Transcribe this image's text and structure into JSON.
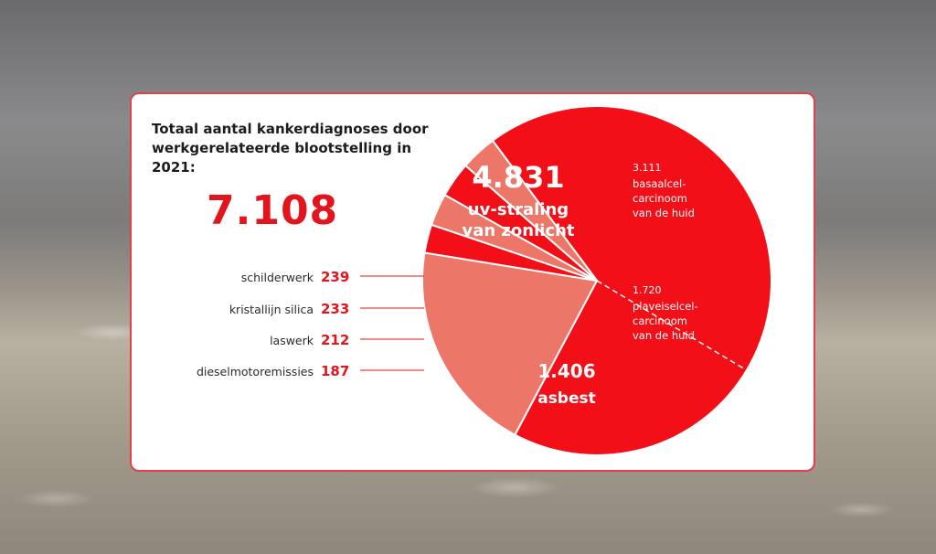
{
  "card": {
    "title": "Totaal aantal kankerdiagnoses door werkgerelateerde blootstelling in 2021:",
    "total": "7.108"
  },
  "colors": {
    "red": "#f20f17",
    "salmon": "#ec7668",
    "accent_text": "#e3141b"
  },
  "chart_data": {
    "type": "pie",
    "title": "Totaal aantal kankerdiagnoses door werkgerelateerde blootstelling in 2021:",
    "total": 7108,
    "slices": [
      {
        "label": "uv-straling van zonlicht",
        "value": 4831,
        "value_label": "4.831",
        "color": "#f20f17",
        "sub": [
          {
            "value": 3111,
            "value_label": "3.111",
            "label": "basaalcel-carcinoom van de huid"
          },
          {
            "value": 1720,
            "value_label": "1.720",
            "label": "plaveiselcel-carcinoom van de huid"
          }
        ]
      },
      {
        "label": "asbest",
        "value": 1406,
        "value_label": "1.406",
        "color": "#ec7668"
      },
      {
        "label": "dieselmotoremissies",
        "value": 187,
        "value_label": "187",
        "color": "#f20f17"
      },
      {
        "label": "laswerk",
        "value": 212,
        "value_label": "212",
        "color": "#ec7668"
      },
      {
        "label": "kristallijn silica",
        "value": 233,
        "value_label": "233",
        "color": "#f20f17"
      },
      {
        "label": "schilderwerk",
        "value": 239,
        "value_label": "239",
        "color": "#ec7668"
      }
    ],
    "legend": [
      {
        "label": "schilderwerk",
        "value": "239"
      },
      {
        "label": "kristallijn silica",
        "value": "233"
      },
      {
        "label": "laswerk",
        "value": "212"
      },
      {
        "label": "dieselmotoremissies",
        "value": "187"
      }
    ]
  }
}
